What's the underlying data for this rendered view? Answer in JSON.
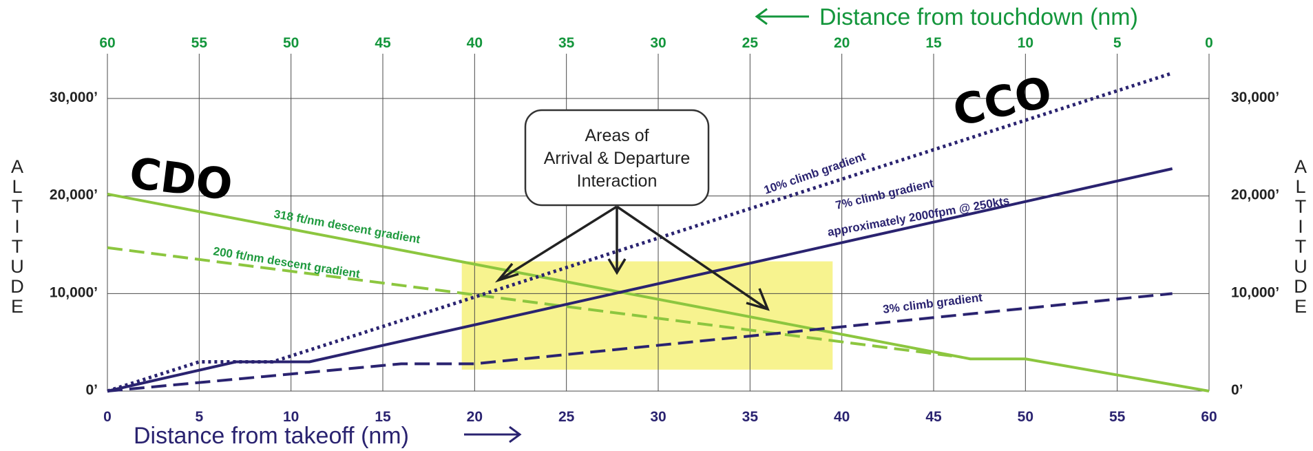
{
  "chart_data": {
    "type": "line",
    "top_axis": {
      "label": "Distance from touchdown (nm)",
      "ticks": [
        "60",
        "55",
        "50",
        "45",
        "40",
        "35",
        "30",
        "25",
        "20",
        "15",
        "10",
        "5",
        "0"
      ]
    },
    "bottom_axis": {
      "label": "Distance from takeoff (nm)",
      "ticks": [
        "0",
        "5",
        "10",
        "15",
        "20",
        "25",
        "30",
        "35",
        "40",
        "45",
        "50",
        "55",
        "60"
      ],
      "xlim": [
        0,
        60
      ]
    },
    "y_axis": {
      "label": "ALTITUDE",
      "ylim": [
        0,
        30000
      ],
      "ticks": [
        {
          "value": 0,
          "label": "0’"
        },
        {
          "value": 10000,
          "label": "10,000’"
        },
        {
          "value": 20000,
          "label": "20,000’"
        },
        {
          "value": 30000,
          "label": "30,000’"
        }
      ]
    },
    "grid": true,
    "cdo_label": "CDO",
    "cco_label": "CCO",
    "series": [
      {
        "key": "cdo318",
        "name": "318 ft/nm descent gradient",
        "color": "#8cc63f",
        "style": "solid",
        "points": [
          [
            0,
            20200
          ],
          [
            47,
            3300
          ],
          [
            50,
            3300
          ],
          [
            60,
            0
          ]
        ]
      },
      {
        "key": "cdo200",
        "name": "200 ft/nm descent gradient",
        "color": "#8cc63f",
        "style": "dashed",
        "points": [
          [
            0,
            14700
          ],
          [
            46,
            3600
          ]
        ]
      },
      {
        "key": "cco10",
        "name": "10% climb gradient",
        "color": "#2a2370",
        "style": "dotted",
        "points": [
          [
            0,
            0
          ],
          [
            5,
            3000
          ],
          [
            9,
            3000
          ],
          [
            58,
            32600
          ]
        ]
      },
      {
        "key": "cco7",
        "name": "7% climb gradient",
        "name2": "approximately 2000fpm @ 250kts",
        "color": "#2a2370",
        "style": "solid",
        "points": [
          [
            0,
            0
          ],
          [
            7,
            3000
          ],
          [
            11,
            3000
          ],
          [
            58,
            22800
          ]
        ]
      },
      {
        "key": "cco3",
        "name": "3% climb gradient",
        "color": "#2a2370",
        "style": "dashed",
        "points": [
          [
            0,
            0
          ],
          [
            16,
            2800
          ],
          [
            20,
            2800
          ],
          [
            58,
            10000
          ]
        ]
      }
    ],
    "interaction_area": {
      "label_lines": [
        "Areas of",
        "Arrival & Departure",
        "Interaction"
      ],
      "color": "#f7f38f",
      "x_range": [
        19.3,
        39.5
      ],
      "y_range": [
        2200,
        13300
      ]
    }
  }
}
